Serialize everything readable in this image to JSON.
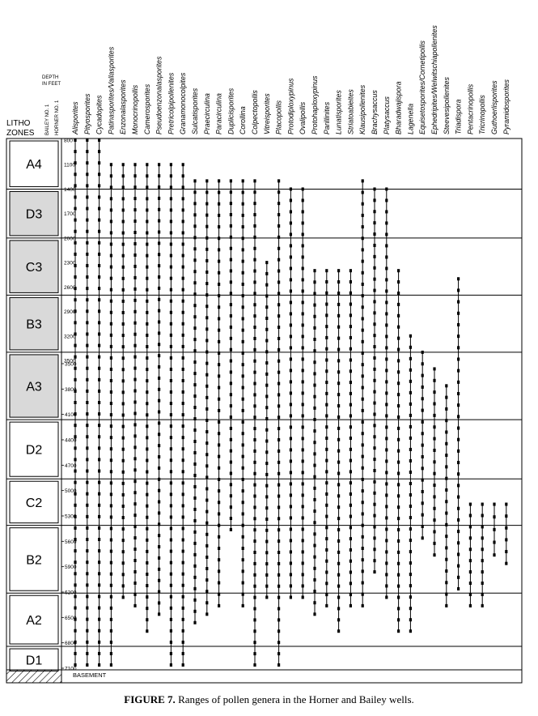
{
  "header": {
    "litho_label": "LITHO",
    "zones_label": "ZONES",
    "depth_label_1": "DEPTH",
    "depth_label_2": "IN FEET",
    "bailey_label": "BAILEY NO. 1",
    "horner_label": "HORNER NO. 1"
  },
  "zones": [
    {
      "label": "A4",
      "shaded": false,
      "top": 800,
      "bottom": 1400
    },
    {
      "label": "D3",
      "shaded": true,
      "top": 1400,
      "bottom": 2000
    },
    {
      "label": "C3",
      "shaded": true,
      "top": 2000,
      "bottom": 2700
    },
    {
      "label": "B3",
      "shaded": true,
      "top": 2700,
      "bottom": 3400
    },
    {
      "label": "A3",
      "shaded": true,
      "top": 3400,
      "bottom": 4200
    },
    {
      "label": "D2",
      "shaded": false,
      "top": 4200,
      "bottom": 4900
    },
    {
      "label": "C2",
      "shaded": false,
      "top": 4900,
      "bottom": 5450
    },
    {
      "label": "B2",
      "shaded": false,
      "top": 5450,
      "bottom": 6250
    },
    {
      "label": "A2",
      "shaded": false,
      "top": 6250,
      "bottom": 6880
    },
    {
      "label": "D1",
      "shaded": false,
      "top": 6880,
      "bottom": 7200
    },
    {
      "label": "",
      "shaded": false,
      "hatched": true,
      "top": 7200,
      "bottom": 7400
    }
  ],
  "bailey_depths": [
    "800",
    "1100",
    "1400",
    "1700",
    "2000",
    "2300",
    "2600",
    "2900",
    "3200",
    "3500"
  ],
  "horner_depths": [
    "3500",
    "3800",
    "4100",
    "4400",
    "4700",
    "5000",
    "5300",
    "5600",
    "5900",
    "6200",
    "6500",
    "6800",
    "7100"
  ],
  "basement_label": "BASEMENT",
  "genera": [
    "Alisporites",
    "Pityosporites",
    "Cycadopites",
    "Patinasporites/Vallasporites",
    "Enzonalasporites",
    "Monocrinopollis",
    "Camerosporites",
    "Pseudoenzonalasporites",
    "Pretricolpipollenites",
    "Granamonocolpites",
    "Sulcatisporites",
    "Praecirculina",
    "Paracirculina",
    "Duplicisporites",
    "Corollina",
    "Colpectopollis",
    "Vitreisporites",
    "Placopollis",
    "Protodiploxypinus",
    "Ovalipollis",
    "Protohaploxypinus",
    "Parillinites",
    "Lunatisporites",
    "Striatoabieites",
    "Klausipollenites",
    "Brachysaccus",
    "Platysaccus",
    "Bharadwajispora",
    "Lagenella",
    "Equisetosporites/Cornetipollis",
    "Ephedripites/Welwitschiapollenites",
    "Steevesipollenites",
    "Triadispora",
    "Pentacrinopollis",
    "Tricrinopollis",
    "Guthoerlisporites",
    "Pyramidosporites"
  ],
  "caption": {
    "prefix": "FIGURE 7.",
    "text": " Ranges of pollen genera in the Horner and Bailey wells."
  },
  "chart_data": {
    "type": "range-chart",
    "y_unit": "depth in feet",
    "bailey_axis_range": [
      800,
      3500
    ],
    "horner_axis_range": [
      3500,
      7100
    ],
    "ranges": [
      {
        "genus": "Alisporites",
        "top": 800,
        "bottom": 7100
      },
      {
        "genus": "Pityosporites",
        "top": 800,
        "bottom": 7100
      },
      {
        "genus": "Cycadopites",
        "top": 800,
        "bottom": 7100
      },
      {
        "genus": "Patinasporites/Vallasporites",
        "top": 1100,
        "bottom": 7100
      },
      {
        "genus": "Enzonalasporites",
        "top": 1100,
        "bottom": 6300
      },
      {
        "genus": "Monocrinopollis",
        "top": 1100,
        "bottom": 6400
      },
      {
        "genus": "Camerosporites",
        "top": 1100,
        "bottom": 6700
      },
      {
        "genus": "Pseudoenzonalasporites",
        "top": 1100,
        "bottom": 6500
      },
      {
        "genus": "Pretricolpipollenites",
        "top": 1100,
        "bottom": 7100
      },
      {
        "genus": "Granamonocolpites",
        "top": 1100,
        "bottom": 7100
      },
      {
        "genus": "Sulcatisporites",
        "top": 1300,
        "bottom": 6600
      },
      {
        "genus": "Praecirculina",
        "top": 1300,
        "bottom": 6500
      },
      {
        "genus": "Paracirculina",
        "top": 1300,
        "bottom": 6400
      },
      {
        "genus": "Duplicisporites",
        "top": 1300,
        "bottom": 5500
      },
      {
        "genus": "Corollina",
        "top": 1300,
        "bottom": 6400
      },
      {
        "genus": "Colpectopollis",
        "top": 1300,
        "bottom": 7100
      },
      {
        "genus": "Vitreisporites",
        "top": 2300,
        "bottom": 6300
      },
      {
        "genus": "Placopollis",
        "top": 1300,
        "bottom": 7100
      },
      {
        "genus": "Protodiploxypinus",
        "top": 1400,
        "bottom": 6300
      },
      {
        "genus": "Ovalipollis",
        "top": 1400,
        "bottom": 6300
      },
      {
        "genus": "Protohaploxypinus",
        "top": 2400,
        "bottom": 6500
      },
      {
        "genus": "Parillinites",
        "top": 2400,
        "bottom": 6400
      },
      {
        "genus": "Lunatisporites",
        "top": 2400,
        "bottom": 6700
      },
      {
        "genus": "Striatoabieites",
        "top": 2400,
        "bottom": 6400
      },
      {
        "genus": "Klausipollenites",
        "top": 1300,
        "bottom": 6400
      },
      {
        "genus": "Brachysaccus",
        "top": 1400,
        "bottom": 6000
      },
      {
        "genus": "Platysaccus",
        "top": 1400,
        "bottom": 6300
      },
      {
        "genus": "Bharadwajispora",
        "top": 2400,
        "bottom": 6700
      },
      {
        "genus": "Lagenella",
        "top": 3200,
        "bottom": 6700
      },
      {
        "genus": "Equisetosporites/Cornetipollis",
        "top": 3400,
        "bottom": 5600
      },
      {
        "genus": "Ephedripites/Welwitschiapollenites",
        "top": 3600,
        "bottom": 5800
      },
      {
        "genus": "Steevesipollenites",
        "top": 3800,
        "bottom": 6400
      },
      {
        "genus": "Triadispora",
        "top": 2500,
        "bottom": 6200
      },
      {
        "genus": "Pentacrinopollis",
        "top": 5200,
        "bottom": 6400
      },
      {
        "genus": "Tricrinopollis",
        "top": 5200,
        "bottom": 6400
      },
      {
        "genus": "Guthoerlisporites",
        "top": 5200,
        "bottom": 5800
      },
      {
        "genus": "Pyramidosporites",
        "top": 5200,
        "bottom": 5900
      }
    ]
  }
}
